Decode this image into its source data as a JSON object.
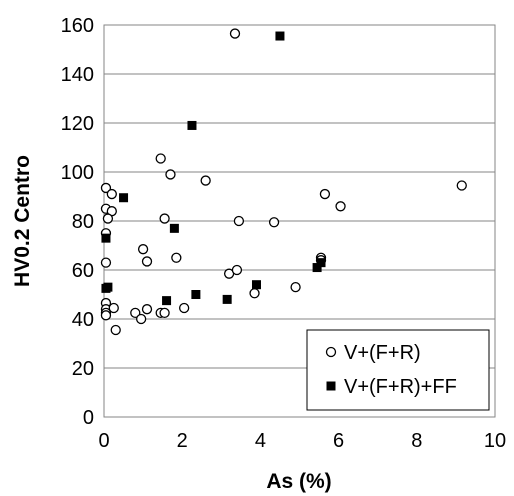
{
  "chart_data": {
    "type": "scatter",
    "xlabel": "As (%)",
    "ylabel": "HV0.2  Centro",
    "xlim": [
      0,
      10
    ],
    "ylim": [
      0,
      160
    ],
    "xticks": [
      "0",
      "2",
      "4",
      "6",
      "8",
      "10"
    ],
    "yticks": [
      "0",
      "20",
      "40",
      "60",
      "80",
      "100",
      "120",
      "140",
      "160"
    ],
    "grid": "horizontal",
    "legend": "bottom-right",
    "series": [
      {
        "name": "V+(F+R)",
        "marker": "open-circle",
        "color": "#000000",
        "points": [
          [
            0.05,
            93.5
          ],
          [
            0.05,
            85
          ],
          [
            0.2,
            91
          ],
          [
            0.2,
            84
          ],
          [
            0.1,
            81
          ],
          [
            0.05,
            75
          ],
          [
            0.05,
            63
          ],
          [
            0.05,
            46.5
          ],
          [
            0.05,
            44
          ],
          [
            0.05,
            42.5
          ],
          [
            0.05,
            41.5
          ],
          [
            0.25,
            44.5
          ],
          [
            0.3,
            35.5
          ],
          [
            0.8,
            42.5
          ],
          [
            0.95,
            40
          ],
          [
            1.0,
            68.5
          ],
          [
            1.1,
            63.5
          ],
          [
            1.1,
            44
          ],
          [
            1.45,
            105.5
          ],
          [
            1.55,
            81
          ],
          [
            1.7,
            99
          ],
          [
            1.85,
            65
          ],
          [
            1.45,
            42.5
          ],
          [
            1.55,
            42.5
          ],
          [
            2.05,
            44.5
          ],
          [
            2.6,
            96.5
          ],
          [
            3.2,
            58.5
          ],
          [
            3.4,
            60
          ],
          [
            3.45,
            80
          ],
          [
            3.35,
            156.5
          ],
          [
            3.85,
            50.5
          ],
          [
            4.35,
            79.5
          ],
          [
            4.9,
            53
          ],
          [
            5.55,
            65
          ],
          [
            5.55,
            64
          ],
          [
            5.65,
            91
          ],
          [
            6.05,
            86
          ],
          [
            9.15,
            94.5
          ]
        ]
      },
      {
        "name": "V+(F+R)+FF",
        "marker": "filled-square",
        "color": "#000000",
        "points": [
          [
            0.05,
            73
          ],
          [
            0.05,
            52.5
          ],
          [
            0.1,
            53
          ],
          [
            0.5,
            89.5
          ],
          [
            1.6,
            47.5
          ],
          [
            1.8,
            77
          ],
          [
            2.25,
            119
          ],
          [
            2.35,
            50
          ],
          [
            3.15,
            48
          ],
          [
            3.9,
            54
          ],
          [
            4.5,
            155.5
          ],
          [
            5.45,
            61
          ],
          [
            5.55,
            63
          ]
        ]
      }
    ]
  }
}
